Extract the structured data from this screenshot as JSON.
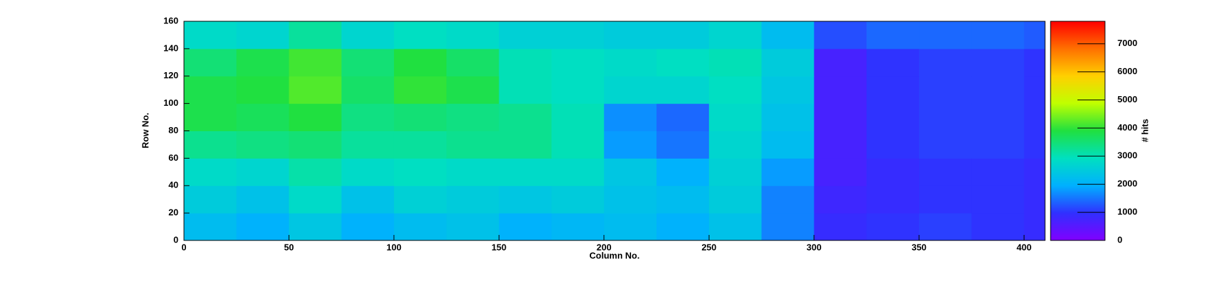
{
  "chart_data": {
    "type": "heatmap",
    "x_label": "Column No.",
    "y_label": "Row No.",
    "z_label": "# hits",
    "xlim": [
      0,
      410
    ],
    "ylim": [
      0,
      160
    ],
    "zlim": [
      0,
      7800
    ],
    "xticks": [
      0,
      50,
      100,
      150,
      200,
      250,
      300,
      350,
      400
    ],
    "yticks": [
      0,
      20,
      40,
      60,
      80,
      100,
      120,
      140,
      160
    ],
    "zticks": [
      0,
      1000,
      2000,
      3000,
      4000,
      5000,
      6000,
      7000
    ],
    "xbins": [
      0,
      25,
      50,
      75,
      100,
      125,
      150,
      175,
      200,
      225,
      250,
      275,
      300,
      325,
      350,
      375,
      400,
      410
    ],
    "ybins": [
      0,
      20,
      40,
      60,
      80,
      100,
      120,
      140,
      160
    ],
    "colorscale": [
      "#8000ff",
      "#3030ff",
      "#00b0ff",
      "#00e0c0",
      "#20e040",
      "#c0ff00",
      "#ffd000",
      "#ff7000",
      "#ff0000"
    ],
    "values": [
      [
        2200,
        2000,
        2400,
        2000,
        2200,
        2300,
        2000,
        2100,
        2200,
        2000,
        2300,
        1600,
        900,
        1000,
        1100,
        1000,
        900
      ],
      [
        2500,
        2300,
        2800,
        2300,
        2600,
        2500,
        2400,
        2500,
        2300,
        2200,
        2500,
        1600,
        800,
        900,
        1000,
        1000,
        900
      ],
      [
        2800,
        2700,
        3100,
        2800,
        2900,
        2800,
        2800,
        2800,
        2400,
        2000,
        2600,
        1800,
        700,
        900,
        1000,
        1000,
        900
      ],
      [
        3300,
        3400,
        3500,
        3200,
        3200,
        3300,
        3300,
        3000,
        1800,
        1500,
        2700,
        2200,
        700,
        1000,
        1100,
        1100,
        1000
      ],
      [
        3800,
        3700,
        3900,
        3400,
        3500,
        3400,
        3300,
        3000,
        1700,
        1400,
        2800,
        2300,
        700,
        1000,
        1100,
        1100,
        1000
      ],
      [
        3800,
        3900,
        4200,
        3600,
        4000,
        3800,
        3000,
        2900,
        2700,
        2700,
        2900,
        2400,
        700,
        1000,
        1100,
        1100,
        1000
      ],
      [
        3500,
        3800,
        4100,
        3500,
        3900,
        3600,
        3000,
        2900,
        2800,
        2900,
        3000,
        2500,
        700,
        1000,
        1100,
        1100,
        1000
      ],
      [
        2800,
        2700,
        3200,
        2700,
        2900,
        2800,
        2600,
        2600,
        2500,
        2500,
        2700,
        2200,
        1200,
        1400,
        1400,
        1400,
        1300
      ]
    ]
  }
}
